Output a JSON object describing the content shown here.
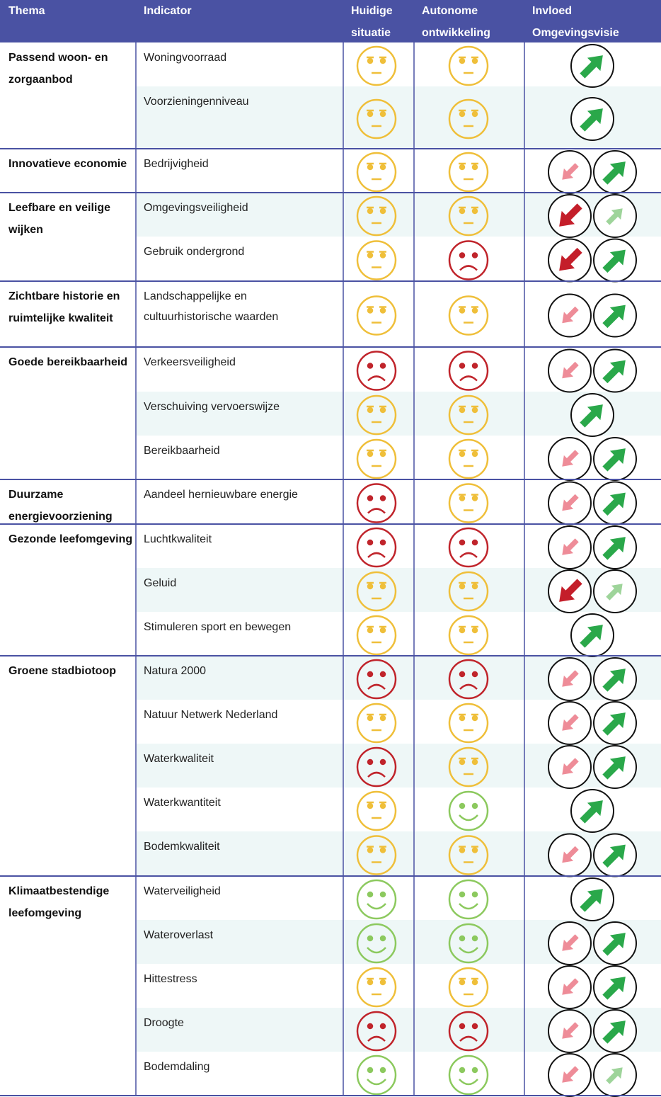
{
  "header": [
    "Thema",
    "Indicator",
    "Huidige situatie",
    "Autonome ontwikkeling",
    "Invloed Omgevingsvisie"
  ],
  "groups": [
    {
      "thema": "Passend woon- en zorgaanbod",
      "indicators": [
        "Woningvoorraad",
        "Voorzieningenniveau"
      ]
    },
    {
      "thema": "Innovatieve economie",
      "indicators": [
        "Bedrijvigheid"
      ]
    },
    {
      "thema": "Leefbare en veilige wijken",
      "indicators": [
        "Omgevingsveiligheid",
        "Gebruik ondergrond"
      ]
    },
    {
      "thema": "Zichtbare historie en ruimtelijke kwaliteit",
      "indicators": [
        "Landschappelijke en cultuurhistorische waarden"
      ]
    },
    {
      "thema": "Goede bereikbaarheid",
      "indicators": [
        "Verkeersveiligheid",
        "Verschuiving vervoerswijze",
        "Bereikbaarheid"
      ]
    },
    {
      "thema": "Duurzame energievoorziening",
      "indicators": [
        "Aandeel hernieuwbare energie"
      ]
    },
    {
      "thema": "Gezonde leefomgeving",
      "indicators": [
        "Luchtkwaliteit",
        "Geluid",
        "Stimuleren sport en bewegen"
      ]
    },
    {
      "thema": "Groene stadbiotoop",
      "indicators": [
        "Natura 2000",
        "Natuur Netwerk Nederland",
        "Waterkwaliteit",
        "Waterkwantiteit",
        "Bodemkwaliteit"
      ]
    },
    {
      "thema": "Klimaatbestendige leefomgeving",
      "indicators": [
        "Waterveiligheid",
        "Wateroverlast",
        "Hittestress",
        "Droogte",
        "Bodemdaling"
      ]
    }
  ]
}
